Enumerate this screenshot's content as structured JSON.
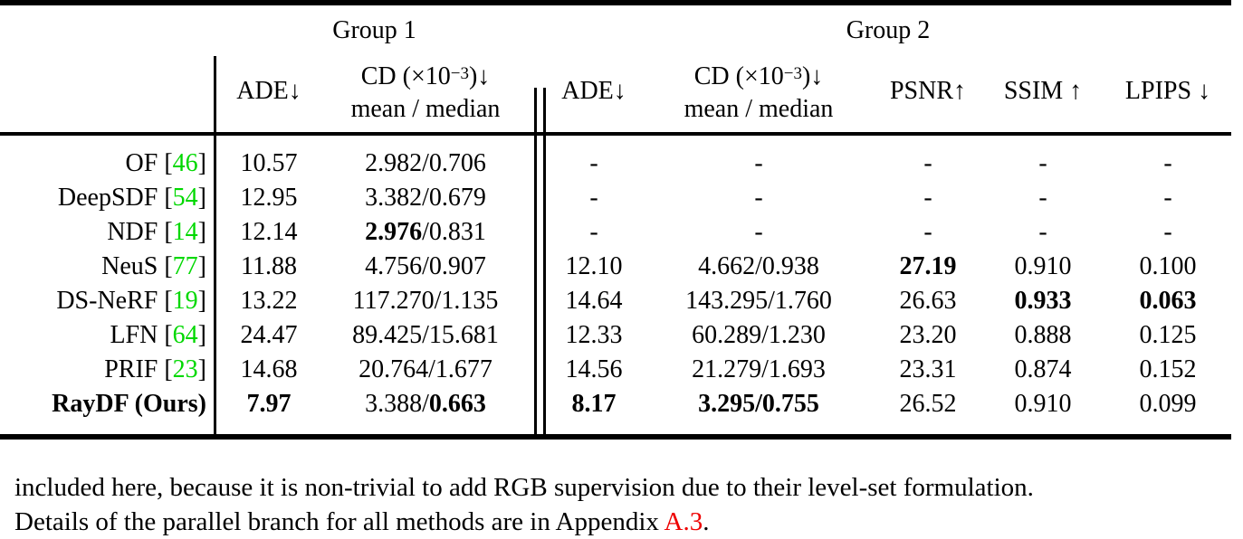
{
  "colors": {
    "citation_green": "#00D800",
    "link_red": "#EE0000",
    "text": "#000000",
    "background": "#ffffff"
  },
  "table": {
    "header": {
      "group1": "Group 1",
      "group2": "Group 2",
      "ade1": "ADE↓",
      "ade2": "ADE↓",
      "cd_prefix": "CD (×10",
      "cd_sup": "−3",
      "cd_suffix": ")↓",
      "cd_line2": "mean / median",
      "psnr": "PSNR↑",
      "ssim": "SSIM ↑",
      "lpips": "LPIPS ↓"
    },
    "rows": [
      {
        "m": "OF [",
        "cite": "46",
        "close": "]",
        "a1": "10.57",
        "c1m": "2.982",
        "s1": " / ",
        "c1d": "0.706",
        "a2": "-",
        "c2m": "-",
        "s2": "",
        "c2d": "",
        "ps": "-",
        "ss": "-",
        "lp": "-"
      },
      {
        "m": "DeepSDF [",
        "cite": "54",
        "close": "]",
        "a1": "12.95",
        "c1m": "3.382",
        "s1": " / ",
        "c1d": "0.679",
        "a2": "-",
        "c2m": "-",
        "s2": "",
        "c2d": "",
        "ps": "-",
        "ss": "-",
        "lp": "-"
      },
      {
        "m": "NDF [",
        "cite": "14",
        "close": "]",
        "a1": "12.14",
        "c1m": "2.976",
        "s1": " / ",
        "c1d": "0.831",
        "a2": "-",
        "c2m": "-",
        "s2": "",
        "c2d": "",
        "ps": "-",
        "ss": "-",
        "lp": "-"
      },
      {
        "m": "NeuS [",
        "cite": "77",
        "close": "]",
        "a1": "11.88",
        "c1m": "4.756",
        "s1": " / ",
        "c1d": "0.907",
        "a2": "12.10",
        "c2m": "4.662",
        "s2": " / ",
        "c2d": "0.938",
        "ps": "27.19",
        "ss": "0.910",
        "lp": "0.100"
      },
      {
        "m": "DS-NeRF [",
        "cite": "19",
        "close": "]",
        "a1": "13.22",
        "c1m": "117.270",
        "s1": " / ",
        "c1d": "1.135",
        "a2": "14.64",
        "c2m": "143.295",
        "s2": " / ",
        "c2d": "1.760",
        "ps": "26.63",
        "ss": "0.933",
        "lp": "0.063"
      },
      {
        "m": "LFN [",
        "cite": "64",
        "close": "]",
        "a1": "24.47",
        "c1m": "89.425",
        "s1": " / ",
        "c1d": "15.681",
        "a2": "12.33",
        "c2m": "60.289",
        "s2": " / ",
        "c2d": "1.230",
        "ps": "23.20",
        "ss": "0.888",
        "lp": "0.125"
      },
      {
        "m": "PRIF [",
        "cite": "23",
        "close": "]",
        "a1": "14.68",
        "c1m": "20.764",
        "s1": " / ",
        "c1d": "1.677",
        "a2": "14.56",
        "c2m": "21.279",
        "s2": " / ",
        "c2d": "1.693",
        "ps": "23.31",
        "ss": "0.874",
        "lp": "0.152"
      },
      {
        "m": "RayDF (Ours)",
        "cite": "",
        "close": "",
        "a1": "7.97",
        "c1m": "3.388",
        "s1": " / ",
        "c1d": "0.663",
        "a2": "8.17",
        "c2m": "3.295",
        "s2": " / ",
        "c2d": "0.755",
        "ps": "26.52",
        "ss": "0.910",
        "lp": "0.099"
      }
    ]
  },
  "footer": {
    "line1": "included here, because it is non-trivial to add RGB supervision due to their level-set formulation.",
    "line2_pre": "Details of the parallel branch for all methods are in Appendix ",
    "line2_link": "A.3",
    "line2_post": "."
  }
}
